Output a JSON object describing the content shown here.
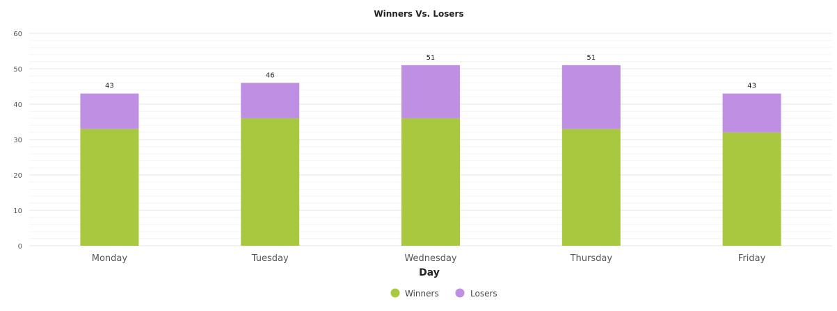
{
  "chart_data": {
    "type": "bar",
    "stacked": true,
    "title": "Winners Vs. Losers",
    "xlabel": "Day",
    "ylabel": "",
    "ylim": [
      0,
      60
    ],
    "yticks": [
      "0",
      "10",
      "20",
      "30",
      "40",
      "50",
      "60"
    ],
    "categories": [
      "Monday",
      "Tuesday",
      "Wednesday",
      "Thursday",
      "Friday"
    ],
    "series": [
      {
        "name": "Winners",
        "color": "#a8c93f",
        "values": [
          33,
          36,
          36,
          33,
          32
        ]
      },
      {
        "name": "Losers",
        "color": "#be8fe3",
        "values": [
          10,
          10,
          15,
          18,
          11
        ]
      }
    ],
    "totals": [
      "43",
      "46",
      "51",
      "51",
      "43"
    ],
    "grid": true,
    "legend_position": "bottom-center"
  }
}
